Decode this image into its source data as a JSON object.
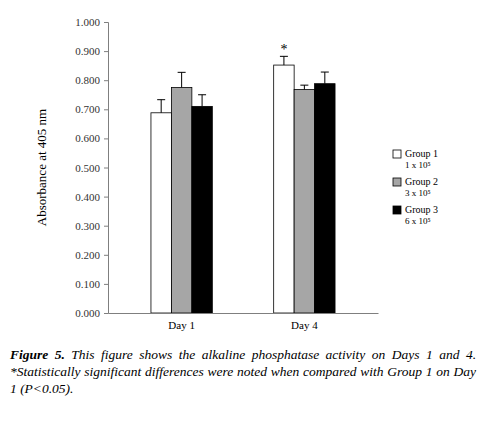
{
  "chart_data": {
    "type": "bar",
    "title": "Figure 5.",
    "subtitle": "This figure shows the alkaline phosphatase activity on Days 1 and 4. *Statistically significant differences were noted when compared with Group 1 on Day 1 (P<0.05).",
    "y_label": "Absorbance at 405 nm",
    "categories": [
      "Day 1",
      "Day 4"
    ],
    "series": [
      {
        "name": "Group 1\n1 x 10⁵",
        "color": "#ffffff",
        "values": [
          0.688,
          0.852
        ],
        "errors": [
          0.045,
          0.03
        ]
      },
      {
        "name": "Group 2\n3 x 10⁵",
        "color": "#a6a6a6",
        "values": [
          0.775,
          0.768
        ],
        "errors": [
          0.052,
          0.015
        ]
      },
      {
        "name": "Group 3\n6 x 10⁵",
        "color": "#000000",
        "values": [
          0.71,
          0.788
        ],
        "errors": [
          0.04,
          0.04
        ]
      }
    ],
    "annotations": [
      {
        "text": "*",
        "category": "Day 4",
        "series": "Group 1\n1 x 10⁵"
      }
    ],
    "ylim": [
      0,
      1
    ],
    "yticks": [
      {
        "value": 0,
        "label": "0.000"
      },
      {
        "value": 0.1,
        "label": "0.100"
      },
      {
        "value": 0.2,
        "label": "0.200"
      },
      {
        "value": 0.3,
        "label": "0.300"
      },
      {
        "value": 0.4,
        "label": "0.400"
      },
      {
        "value": 0.5,
        "label": "0.500"
      },
      {
        "value": 0.6,
        "label": "0.600"
      },
      {
        "value": 0.7,
        "label": "0.700"
      },
      {
        "value": 0.8,
        "label": "0.800"
      },
      {
        "value": 0.9,
        "label": "0.900"
      },
      {
        "value": 1,
        "label": "1.000"
      }
    ],
    "grid": false,
    "legend": "right"
  }
}
